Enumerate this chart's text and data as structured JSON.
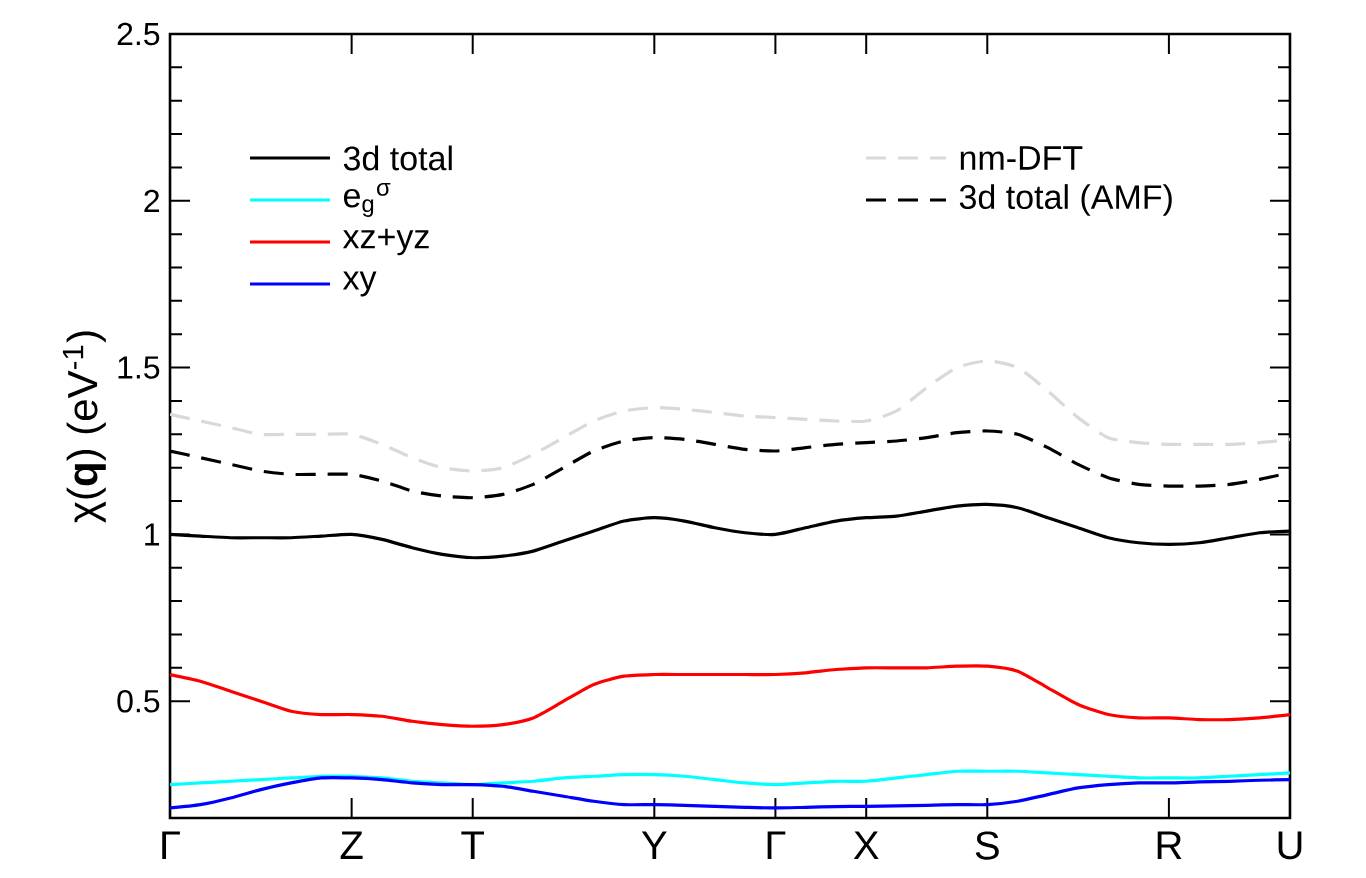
{
  "chart_data": {
    "type": "line",
    "ylabel": "χ(**q**) (eV$^{-1}$)",
    "categories": [
      "Γ",
      null,
      null,
      null,
      null,
      null,
      "Z",
      null,
      null,
      null,
      "T",
      null,
      null,
      null,
      null,
      null,
      "Y",
      null,
      null,
      null,
      "Γ",
      null,
      null,
      "X",
      null,
      null,
      null,
      "S",
      null,
      null,
      null,
      null,
      null,
      "R",
      null,
      null,
      null,
      "U"
    ],
    "ylim": [
      0.15,
      2.5
    ],
    "yticks": [
      0.5,
      1,
      1.5,
      2,
      2.5
    ],
    "legend": "top",
    "grid": false,
    "series": [
      {
        "name": "3d total",
        "color": "#000000",
        "line_style": "solid",
        "values": [
          1.0,
          0.995,
          0.99,
          0.99,
          0.99,
          0.995,
          1.0,
          0.985,
          0.96,
          0.94,
          0.93,
          0.935,
          0.95,
          0.98,
          1.01,
          1.04,
          1.05,
          1.04,
          1.02,
          1.005,
          1.0,
          1.02,
          1.04,
          1.05,
          1.055,
          1.07,
          1.085,
          1.09,
          1.08,
          1.05,
          1.02,
          0.99,
          0.975,
          0.97,
          0.975,
          0.99,
          1.005,
          1.01
        ]
      },
      {
        "name": "e$_{g}$$^{σ}$",
        "color": "#00ffff",
        "line_style": "solid",
        "values": [
          0.25,
          0.255,
          0.26,
          0.265,
          0.27,
          0.275,
          0.275,
          0.27,
          0.26,
          0.255,
          0.25,
          0.255,
          0.26,
          0.27,
          0.275,
          0.28,
          0.28,
          0.275,
          0.265,
          0.255,
          0.25,
          0.255,
          0.26,
          0.26,
          0.27,
          0.28,
          0.29,
          0.29,
          0.29,
          0.285,
          0.28,
          0.275,
          0.27,
          0.27,
          0.27,
          0.275,
          0.28,
          0.285
        ]
      },
      {
        "name": "xz+yz",
        "color": "#ff0000",
        "line_style": "solid",
        "values": [
          0.58,
          0.56,
          0.53,
          0.5,
          0.47,
          0.46,
          0.46,
          0.455,
          0.44,
          0.43,
          0.425,
          0.43,
          0.45,
          0.5,
          0.55,
          0.575,
          0.58,
          0.58,
          0.58,
          0.58,
          0.58,
          0.585,
          0.595,
          0.6,
          0.6,
          0.6,
          0.605,
          0.605,
          0.59,
          0.54,
          0.49,
          0.46,
          0.45,
          0.45,
          0.445,
          0.445,
          0.45,
          0.46
        ]
      },
      {
        "name": "xy",
        "color": "#0000ff",
        "line_style": "solid",
        "values": [
          0.18,
          0.19,
          0.21,
          0.235,
          0.255,
          0.27,
          0.27,
          0.265,
          0.255,
          0.25,
          0.25,
          0.245,
          0.23,
          0.215,
          0.2,
          0.19,
          0.19,
          0.188,
          0.185,
          0.182,
          0.18,
          0.182,
          0.184,
          0.185,
          0.186,
          0.188,
          0.19,
          0.19,
          0.2,
          0.22,
          0.24,
          0.25,
          0.255,
          0.255,
          0.258,
          0.26,
          0.263,
          0.265
        ]
      },
      {
        "name": "nm-DFT",
        "color": "#d9d9d9",
        "line_style": "dashed",
        "values": [
          1.36,
          1.34,
          1.32,
          1.3,
          1.3,
          1.3,
          1.3,
          1.27,
          1.23,
          1.2,
          1.19,
          1.2,
          1.24,
          1.29,
          1.34,
          1.37,
          1.38,
          1.375,
          1.365,
          1.355,
          1.35,
          1.345,
          1.34,
          1.34,
          1.37,
          1.44,
          1.5,
          1.52,
          1.5,
          1.43,
          1.35,
          1.29,
          1.275,
          1.27,
          1.27,
          1.27,
          1.275,
          1.285
        ]
      },
      {
        "name": "3d total (AMF)",
        "color": "#000000",
        "line_style": "dashed",
        "values": [
          1.25,
          1.23,
          1.21,
          1.19,
          1.18,
          1.18,
          1.18,
          1.16,
          1.13,
          1.115,
          1.11,
          1.12,
          1.15,
          1.2,
          1.25,
          1.28,
          1.29,
          1.285,
          1.27,
          1.255,
          1.25,
          1.26,
          1.27,
          1.275,
          1.28,
          1.29,
          1.305,
          1.31,
          1.3,
          1.26,
          1.21,
          1.17,
          1.15,
          1.145,
          1.145,
          1.15,
          1.165,
          1.185
        ]
      }
    ]
  }
}
